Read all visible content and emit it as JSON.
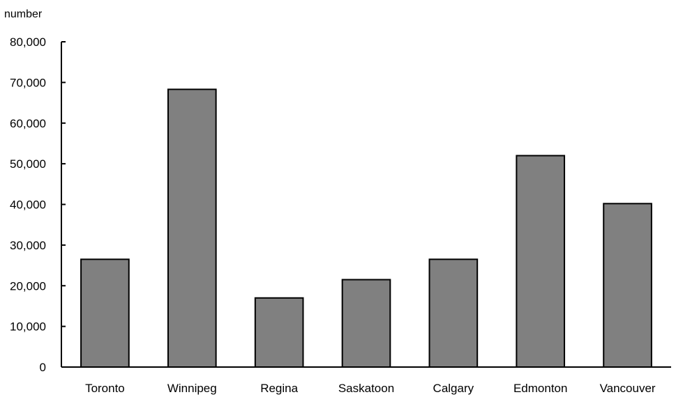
{
  "chart_data": {
    "type": "bar",
    "title": "",
    "xlabel": "",
    "ylabel": "number",
    "categories": [
      "Toronto",
      "Winnipeg",
      "Regina",
      "Saskatoon",
      "Calgary",
      "Edmonton",
      "Vancouver"
    ],
    "values": [
      26500,
      68300,
      17000,
      21500,
      26500,
      52000,
      40200
    ],
    "ylim": [
      0,
      80000
    ],
    "yticks": [
      0,
      10000,
      20000,
      30000,
      40000,
      50000,
      60000,
      70000,
      80000
    ],
    "ytick_labels": [
      "0",
      "10,000",
      "20,000",
      "30,000",
      "40,000",
      "50,000",
      "60,000",
      "70,000",
      "80,000"
    ],
    "grid": false,
    "bar_color": "#808080",
    "bar_edge_color": "#000000"
  }
}
